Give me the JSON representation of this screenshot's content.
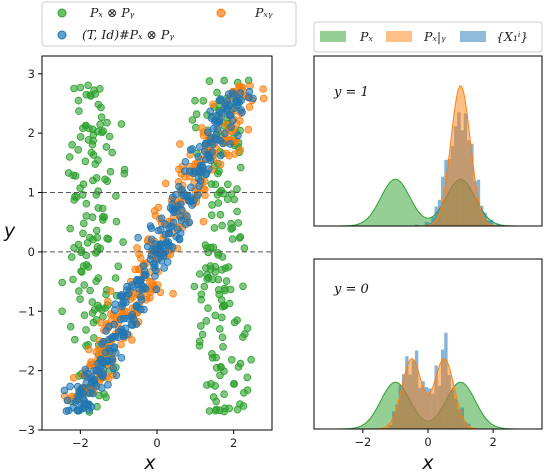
{
  "colors": {
    "green": "#2ca02c",
    "blue": "#1f77b4",
    "orange": "#ff7f0e",
    "dash": "#555555"
  },
  "chart_data": [
    {
      "type": "scatter",
      "legend_position": "top",
      "xlabel": "x",
      "ylabel": "y",
      "xlim": [
        -3.0,
        3.0
      ],
      "ylim": [
        -3.0,
        3.3
      ],
      "x_ticks": [
        -2,
        0,
        2
      ],
      "y_ticks": [
        -3,
        -2,
        -1,
        0,
        1,
        2,
        3
      ],
      "hlines": [
        0,
        1
      ],
      "series": [
        {
          "name": "P_X ⊗ P_Y",
          "legend_label": "Pₓ ⊗ Pᵧ",
          "color": "#2ca02c",
          "description_x_center": [
            -1.8,
            1.8
          ],
          "y_range": [
            -2.7,
            2.9
          ]
        },
        {
          "name": "(T, Id)#P_X ⊗ P_Y",
          "legend_label": "(T, Id)#Pₓ ⊗ Pᵧ",
          "color": "#1f77b4",
          "x_range": [
            -2.3,
            2.6
          ],
          "y_range": [
            -2.8,
            2.9
          ]
        },
        {
          "name": "P_XY",
          "legend_label": "Pₓᵧ",
          "color": "#ff7f0e",
          "x_range": [
            -2.3,
            2.5
          ],
          "y_range": [
            -2.5,
            2.9
          ]
        }
      ]
    },
    {
      "type": "area",
      "annotation": "y = 1",
      "xlim": [
        -3.5,
        3.5
      ],
      "legend": [
        "P_X",
        "P_X|Y",
        "{X_1^i}"
      ],
      "series": [
        {
          "name": "P_X",
          "color": "#2ca02c",
          "modes": [
            -1,
            1
          ],
          "sigma": 0.45,
          "weights": [
            0.5,
            0.5
          ]
        },
        {
          "name": "P_X|Y",
          "color": "#ff7f0e",
          "modes": [
            1
          ],
          "sigma": 0.3,
          "weights": [
            1
          ]
        },
        {
          "name": "{X_1^i}",
          "color": "#1f77b4",
          "histogram_center": 1.0,
          "histogram_spread": 0.35
        }
      ]
    },
    {
      "type": "area",
      "annotation": "y = 0",
      "xlim": [
        -3.5,
        3.5
      ],
      "x_ticks": [
        -2,
        0,
        2
      ],
      "xlabel": "x",
      "series": [
        {
          "name": "P_X",
          "color": "#2ca02c",
          "modes": [
            -1,
            1
          ],
          "sigma": 0.45,
          "weights": [
            0.5,
            0.5
          ]
        },
        {
          "name": "P_X|Y",
          "color": "#ff7f0e",
          "modes": [
            -0.5,
            0.5
          ],
          "sigma": 0.3,
          "weights": [
            0.5,
            0.5
          ]
        },
        {
          "name": "{X_1^i}",
          "color": "#1f77b4",
          "histogram_modes": [
            -0.5,
            0.5
          ],
          "histogram_spread": 0.3
        }
      ]
    }
  ],
  "legend_left": {
    "item1": "Pₓ ⊗ Pᵧ",
    "item2": "(T, Id)#Pₓ ⊗ Pᵧ",
    "item3": "Pₓᵧ"
  },
  "legend_right": {
    "item1": "Pₓ",
    "item2": "Pₓ|ᵧ",
    "item3": "{X₁ⁱ}"
  },
  "main_axes": {
    "xlabel": "x",
    "ylabel": "y"
  },
  "top_panel": {
    "annotation": "y = 1"
  },
  "bottom_panel": {
    "annotation": "y = 0",
    "xlabel": "x"
  }
}
